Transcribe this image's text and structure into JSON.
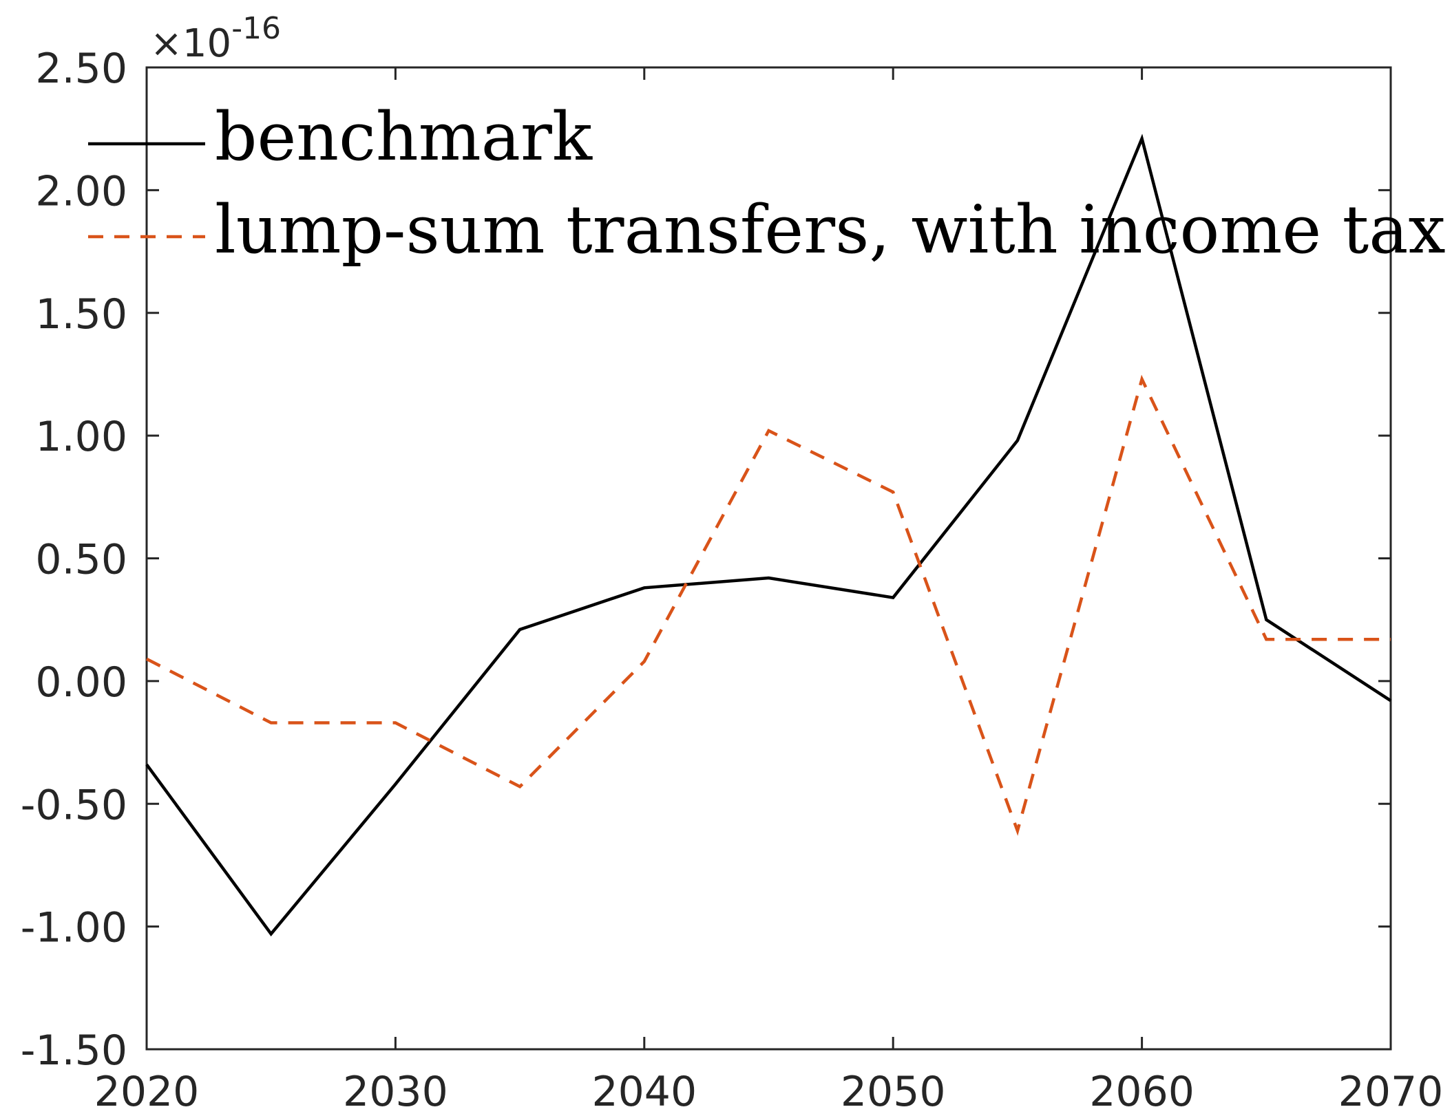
{
  "chart_data": {
    "type": "line",
    "title": "",
    "xlabel": "",
    "ylabel": "",
    "xlim": [
      2020,
      2070
    ],
    "ylim": [
      -1.5,
      2.5
    ],
    "y_multiplier": "×10",
    "y_multiplier_exponent": "-16",
    "xticks": [
      "2020",
      "2030",
      "2040",
      "2050",
      "2060",
      "2070"
    ],
    "yticks": [
      "2.50",
      "2.00",
      "1.50",
      "1.00",
      "0.50",
      "0.00",
      "-0.50",
      "-1.00",
      "-1.50"
    ],
    "x": [
      2020,
      2025,
      2030,
      2035,
      2040,
      2045,
      2050,
      2055,
      2060,
      2065,
      2070
    ],
    "series": [
      {
        "name": "benchmark",
        "color": "#000000",
        "dash": "solid",
        "values": [
          -0.34,
          -1.03,
          -0.42,
          0.21,
          0.38,
          0.42,
          0.34,
          0.98,
          2.21,
          0.25,
          -0.08
        ]
      },
      {
        "name": "lump-sum transfers, with income tax",
        "color": "#D95319",
        "dash": "dashed",
        "values": [
          0.09,
          -0.17,
          -0.17,
          -0.43,
          0.08,
          1.02,
          0.77,
          -0.61,
          1.23,
          0.17,
          0.17
        ]
      }
    ],
    "grid": false,
    "legend_position": "top-left"
  }
}
